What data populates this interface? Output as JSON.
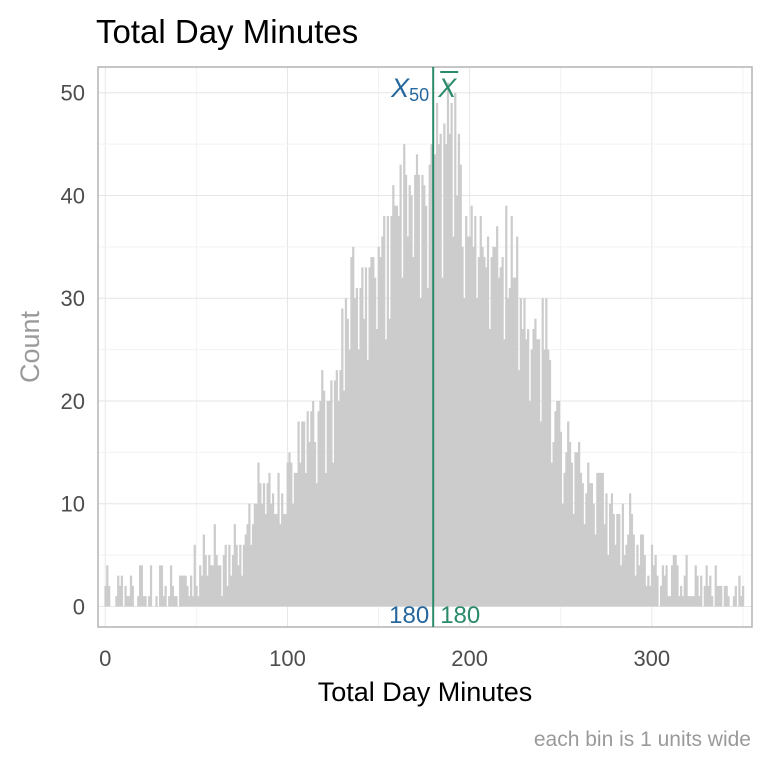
{
  "chart_data": {
    "type": "bar",
    "title": "Total Day Minutes",
    "xlabel": "Total Day Minutes",
    "ylabel": "Count",
    "caption": "each bin is 1 units wide",
    "xlim": [
      -4,
      355
    ],
    "ylim": [
      -2,
      52.5
    ],
    "x_ticks": [
      0,
      100,
      200,
      300
    ],
    "y_ticks": [
      0,
      10,
      20,
      30,
      40,
      50
    ],
    "x_tick_labels": [
      "0",
      "100",
      "200",
      "300"
    ],
    "y_tick_labels": [
      "0",
      "10",
      "20",
      "30",
      "40",
      "50"
    ],
    "bin_width": 1,
    "grid": true,
    "bar_color": "#cccccc",
    "profile": [
      [
        0,
        2
      ],
      [
        5,
        1
      ],
      [
        7,
        2
      ],
      [
        10,
        2
      ],
      [
        14,
        1
      ],
      [
        18,
        2
      ],
      [
        25,
        1
      ],
      [
        35,
        2
      ],
      [
        45,
        2
      ],
      [
        50,
        3
      ],
      [
        55,
        5
      ],
      [
        60,
        5
      ],
      [
        65,
        3
      ],
      [
        70,
        6
      ],
      [
        75,
        6
      ],
      [
        80,
        8
      ],
      [
        85,
        12
      ],
      [
        90,
        11
      ],
      [
        95,
        10
      ],
      [
        100,
        13
      ],
      [
        105,
        15
      ],
      [
        110,
        19
      ],
      [
        115,
        18
      ],
      [
        120,
        20
      ],
      [
        125,
        21
      ],
      [
        130,
        26
      ],
      [
        135,
        29
      ],
      [
        140,
        31
      ],
      [
        145,
        33
      ],
      [
        150,
        36
      ],
      [
        155,
        37
      ],
      [
        160,
        39
      ],
      [
        165,
        40
      ],
      [
        170,
        42
      ],
      [
        175,
        43
      ],
      [
        180,
        44
      ],
      [
        185,
        45
      ],
      [
        190,
        44
      ],
      [
        195,
        40
      ],
      [
        200,
        38
      ],
      [
        205,
        36
      ],
      [
        210,
        34
      ],
      [
        215,
        33
      ],
      [
        220,
        32
      ],
      [
        225,
        30
      ],
      [
        230,
        27
      ],
      [
        235,
        26
      ],
      [
        240,
        25
      ],
      [
        245,
        21
      ],
      [
        250,
        17
      ],
      [
        255,
        15
      ],
      [
        260,
        14
      ],
      [
        265,
        12
      ],
      [
        270,
        12
      ],
      [
        275,
        10
      ],
      [
        280,
        9
      ],
      [
        285,
        7
      ],
      [
        290,
        6
      ],
      [
        295,
        6
      ],
      [
        300,
        4
      ],
      [
        305,
        3
      ],
      [
        310,
        3
      ],
      [
        320,
        2
      ],
      [
        330,
        2
      ],
      [
        340,
        1
      ],
      [
        350,
        1
      ]
    ],
    "highlights": [
      [
        8,
        2
      ],
      [
        15,
        2
      ],
      [
        45,
        2
      ],
      [
        55,
        5
      ],
      [
        62,
        4
      ],
      [
        76,
        6
      ],
      [
        85,
        12
      ],
      [
        92,
        11
      ],
      [
        98,
        9
      ],
      [
        107,
        14
      ],
      [
        112,
        16
      ],
      [
        118,
        20
      ],
      [
        121,
        13
      ],
      [
        123,
        20
      ],
      [
        126,
        22
      ],
      [
        128,
        20
      ],
      [
        132,
        30
      ],
      [
        135,
        34
      ],
      [
        136,
        35
      ],
      [
        140,
        31
      ],
      [
        142,
        28
      ],
      [
        145,
        33
      ],
      [
        148,
        32
      ],
      [
        150,
        35
      ],
      [
        153,
        38
      ],
      [
        156,
        28
      ],
      [
        158,
        41
      ],
      [
        160,
        39
      ],
      [
        162,
        43
      ],
      [
        164,
        45
      ],
      [
        166,
        36
      ],
      [
        168,
        40
      ],
      [
        170,
        42
      ],
      [
        172,
        42
      ],
      [
        174,
        42
      ],
      [
        176,
        39
      ],
      [
        178,
        43
      ],
      [
        180,
        40
      ],
      [
        182,
        49
      ],
      [
        184,
        46
      ],
      [
        186,
        47
      ],
      [
        188,
        51
      ],
      [
        190,
        49
      ],
      [
        192,
        50
      ],
      [
        194,
        46
      ],
      [
        196,
        35
      ],
      [
        198,
        38
      ],
      [
        200,
        36
      ],
      [
        202,
        35
      ],
      [
        205,
        34
      ],
      [
        208,
        34
      ],
      [
        210,
        36
      ],
      [
        213,
        35
      ],
      [
        215,
        37
      ],
      [
        218,
        34
      ],
      [
        220,
        39
      ],
      [
        223,
        38
      ],
      [
        226,
        36
      ],
      [
        228,
        30
      ],
      [
        231,
        26
      ],
      [
        234,
        25
      ],
      [
        236,
        28
      ],
      [
        240,
        30
      ],
      [
        242,
        30
      ],
      [
        244,
        24
      ],
      [
        246,
        16
      ],
      [
        250,
        17
      ],
      [
        252,
        13
      ],
      [
        255,
        16
      ],
      [
        258,
        15
      ],
      [
        262,
        12
      ],
      [
        265,
        14
      ],
      [
        268,
        10
      ],
      [
        272,
        13
      ],
      [
        275,
        11
      ],
      [
        282,
        9
      ],
      [
        288,
        11
      ],
      [
        295,
        7
      ],
      [
        300,
        6
      ],
      [
        308,
        4
      ],
      [
        312,
        5
      ],
      [
        318,
        3
      ],
      [
        324,
        4
      ],
      [
        327,
        3
      ],
      [
        340,
        2
      ],
      [
        345,
        1
      ],
      [
        350,
        2
      ]
    ],
    "dips": [
      [
        3,
        0
      ],
      [
        6,
        1
      ],
      [
        12,
        1
      ],
      [
        17,
        0
      ],
      [
        21,
        1
      ],
      [
        27,
        0
      ],
      [
        38,
        1
      ],
      [
        48,
        1
      ],
      [
        67,
        2
      ],
      [
        73,
        4
      ],
      [
        88,
        9
      ],
      [
        96,
        8
      ],
      [
        103,
        10
      ],
      [
        110,
        13
      ],
      [
        116,
        12
      ],
      [
        125,
        14
      ],
      [
        131,
        21
      ],
      [
        139,
        25
      ],
      [
        144,
        24
      ],
      [
        149,
        27
      ],
      [
        154,
        26
      ],
      [
        163,
        32
      ],
      [
        169,
        34
      ],
      [
        173,
        30
      ],
      [
        177,
        31
      ],
      [
        185,
        32
      ],
      [
        191,
        36
      ],
      [
        197,
        30
      ],
      [
        204,
        30
      ],
      [
        211,
        27
      ],
      [
        219,
        26
      ],
      [
        227,
        23
      ],
      [
        233,
        20
      ],
      [
        239,
        18
      ],
      [
        245,
        14
      ],
      [
        251,
        10
      ],
      [
        257,
        9
      ],
      [
        263,
        8
      ],
      [
        269,
        7
      ],
      [
        276,
        5
      ],
      [
        283,
        4
      ],
      [
        291,
        3
      ],
      [
        297,
        2
      ],
      [
        305,
        2
      ],
      [
        315,
        1
      ],
      [
        322,
        1
      ],
      [
        333,
        1
      ],
      [
        343,
        0
      ],
      [
        349,
        1
      ]
    ],
    "annotations": {
      "median_symbol": "X",
      "median_subscript": "50",
      "mean_symbol": "X",
      "median_value": "180",
      "mean_value": "180",
      "line_x": 180,
      "median_color": "#26689e",
      "mean_color": "#2b8a6b"
    }
  }
}
